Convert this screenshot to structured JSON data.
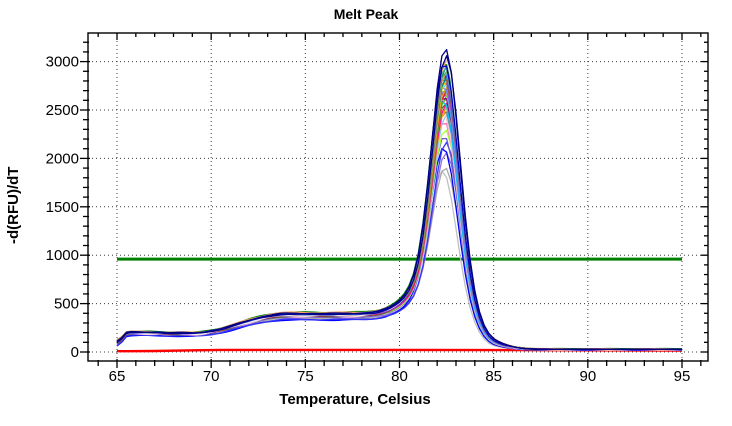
{
  "colors": {
    "background": "#FFFFFF",
    "axis": "#000000",
    "grid": "#3A3A3A",
    "threshold": "#008000",
    "negative_control": "#FF0000"
  },
  "chart_data": {
    "type": "line",
    "title": "Melt Peak",
    "xlabel": "Temperature, Celsius",
    "ylabel": "-d(RFU)/dT",
    "xlim": [
      63.5,
      96.4
    ],
    "ylim": [
      -95,
      3295
    ],
    "x_major_ticks": [
      65,
      70,
      75,
      80,
      85,
      90,
      95
    ],
    "y_major_ticks": [
      0,
      500,
      1000,
      1500,
      2000,
      2500,
      3000
    ],
    "x_minor_step": 1,
    "y_minor_step": 100,
    "grid_style": "dotted",
    "legend": "none",
    "curve_temp_range": [
      65,
      95
    ],
    "peak_center_celsius": 82.45,
    "threshold_line": {
      "value": 960,
      "color": "#008000",
      "x_start": 65,
      "x_end": 95
    },
    "negative_control": {
      "color": "#FF0000",
      "points": [
        [
          65,
          8
        ],
        [
          67,
          10
        ],
        [
          69,
          18
        ],
        [
          70.5,
          22
        ],
        [
          80,
          22
        ],
        [
          86,
          20
        ],
        [
          95,
          15
        ]
      ]
    },
    "series": [
      {
        "c": "#C0C0C0",
        "p": 1870,
        "q": 345,
        "s": 70,
        "t": 22,
        "m": 82.3
      },
      {
        "c": "#A9A9A9",
        "p": 1905,
        "q": 350,
        "s": 75,
        "t": 25,
        "m": 82.45
      },
      {
        "c": "#9370DB",
        "p": 2060,
        "q": 355,
        "s": 80,
        "t": 24,
        "m": 82.5
      },
      {
        "c": "#0000FF",
        "p": 2110,
        "q": 330,
        "s": 65,
        "t": 20,
        "m": 82.35
      },
      {
        "c": "#3333FF",
        "p": 2165,
        "q": 335,
        "s": 68,
        "t": 22,
        "m": 82.5
      },
      {
        "c": "#6A5ACD",
        "p": 2230,
        "q": 360,
        "s": 85,
        "t": 26,
        "m": 82.4
      },
      {
        "c": "#ADFF2F",
        "p": 2300,
        "q": 370,
        "s": 90,
        "t": 27,
        "m": 82.45
      },
      {
        "c": "#FF69B4",
        "p": 2385,
        "q": 375,
        "s": 95,
        "t": 24,
        "m": 82.4
      },
      {
        "c": "#87CEEB",
        "p": 2450,
        "q": 380,
        "s": 100,
        "t": 28,
        "m": 82.5
      },
      {
        "c": "#FFC0CB",
        "p": 2465,
        "q": 365,
        "s": 88,
        "t": 23,
        "m": 82.35
      },
      {
        "c": "#FF8C00",
        "p": 2490,
        "q": 385,
        "s": 105,
        "t": 29,
        "m": 82.45
      },
      {
        "c": "#708090",
        "p": 2505,
        "q": 372,
        "s": 92,
        "t": 25,
        "m": 82.4
      },
      {
        "c": "#FFA500",
        "p": 2525,
        "q": 390,
        "s": 108,
        "t": 30,
        "m": 82.5
      },
      {
        "c": "#9ACD32",
        "p": 2555,
        "q": 395,
        "s": 110,
        "t": 28,
        "m": 82.4
      },
      {
        "c": "#556B2F",
        "p": 2580,
        "q": 368,
        "s": 86,
        "t": 24,
        "m": 82.45
      },
      {
        "c": "#FF1493",
        "p": 2565,
        "q": 378,
        "s": 96,
        "t": 26,
        "m": 82.5
      },
      {
        "c": "#00BFFF",
        "p": 2605,
        "q": 388,
        "s": 104,
        "t": 29,
        "m": 82.35
      },
      {
        "c": "#FA8072",
        "p": 2625,
        "q": 382,
        "s": 98,
        "t": 27,
        "m": 82.45
      },
      {
        "c": "#32CD32",
        "p": 2650,
        "q": 392,
        "s": 112,
        "t": 30,
        "m": 82.5
      },
      {
        "c": "#800080",
        "p": 2645,
        "q": 376,
        "s": 94,
        "t": 25,
        "m": 82.4
      },
      {
        "c": "#FF00FF",
        "p": 2680,
        "q": 384,
        "s": 100,
        "t": 28,
        "m": 82.45
      },
      {
        "c": "#FFFF00",
        "p": 2700,
        "q": 398,
        "s": 115,
        "t": 31,
        "m": 82.4
      },
      {
        "c": "#DC143C",
        "p": 2705,
        "q": 380,
        "s": 97,
        "t": 26,
        "m": 82.5
      },
      {
        "c": "#5F9EA0",
        "p": 2720,
        "q": 390,
        "s": 106,
        "t": 29,
        "m": 82.4
      },
      {
        "c": "#8A2BE2",
        "p": 2725,
        "q": 374,
        "s": 91,
        "t": 24,
        "m": 82.45
      },
      {
        "c": "#DAA520",
        "p": 2740,
        "q": 396,
        "s": 113,
        "t": 30,
        "m": 82.5
      },
      {
        "c": "#6495ED",
        "p": 2755,
        "q": 386,
        "s": 102,
        "t": 27,
        "m": 82.35
      },
      {
        "c": "#40E0D0",
        "p": 2780,
        "q": 394,
        "s": 111,
        "t": 29,
        "m": 82.45
      },
      {
        "c": "#BA55D3",
        "p": 2810,
        "q": 379,
        "s": 95,
        "t": 25,
        "m": 82.4
      },
      {
        "c": "#FFD700",
        "p": 2820,
        "q": 400,
        "s": 118,
        "t": 31,
        "m": 82.5
      },
      {
        "c": "#00FA9A",
        "p": 2825,
        "q": 397,
        "s": 114,
        "t": 30,
        "m": 82.45
      },
      {
        "c": "#A0522D",
        "p": 2840,
        "q": 383,
        "s": 99,
        "t": 26,
        "m": 82.4
      },
      {
        "c": "#008080",
        "p": 2850,
        "q": 391,
        "s": 107,
        "t": 28,
        "m": 82.5
      },
      {
        "c": "#006400",
        "p": 2870,
        "q": 402,
        "s": 120,
        "t": 32,
        "m": 82.45
      },
      {
        "c": "#4169E1",
        "p": 2890,
        "q": 387,
        "s": 103,
        "t": 27,
        "m": 82.4
      },
      {
        "c": "#E9967A",
        "p": 2900,
        "q": 399,
        "s": 116,
        "t": 30,
        "m": 82.5
      },
      {
        "c": "#3CB371",
        "p": 2905,
        "q": 404,
        "s": 122,
        "t": 32,
        "m": 82.45
      },
      {
        "c": "#D2B48C",
        "p": 2960,
        "q": 406,
        "s": 125,
        "t": 33,
        "m": 82.4
      },
      {
        "c": "#2E8B57",
        "p": 2955,
        "q": 403,
        "s": 119,
        "t": 31,
        "m": 82.5
      },
      {
        "c": "#20B2AA",
        "p": 2950,
        "q": 395,
        "s": 109,
        "t": 29,
        "m": 82.45
      },
      {
        "c": "#008000",
        "p": 3000,
        "q": 410,
        "s": 130,
        "t": 34,
        "m": 82.4
      },
      {
        "c": "#F4A460",
        "p": 3020,
        "q": 408,
        "s": 126,
        "t": 33,
        "m": 82.5
      },
      {
        "c": "#F0F0F0",
        "p": 3045,
        "q": 375,
        "s": 90,
        "t": 23,
        "m": 82.45
      },
      {
        "c": "#0000CD",
        "p": 2985,
        "q": 393,
        "s": 108,
        "t": 28,
        "m": 82.4
      },
      {
        "c": "#00008B",
        "p": 3060,
        "q": 388,
        "s": 101,
        "t": 27,
        "m": 82.5
      },
      {
        "c": "#000080",
        "p": 3135,
        "q": 398,
        "s": 112,
        "t": 29,
        "m": 82.45
      }
    ]
  }
}
